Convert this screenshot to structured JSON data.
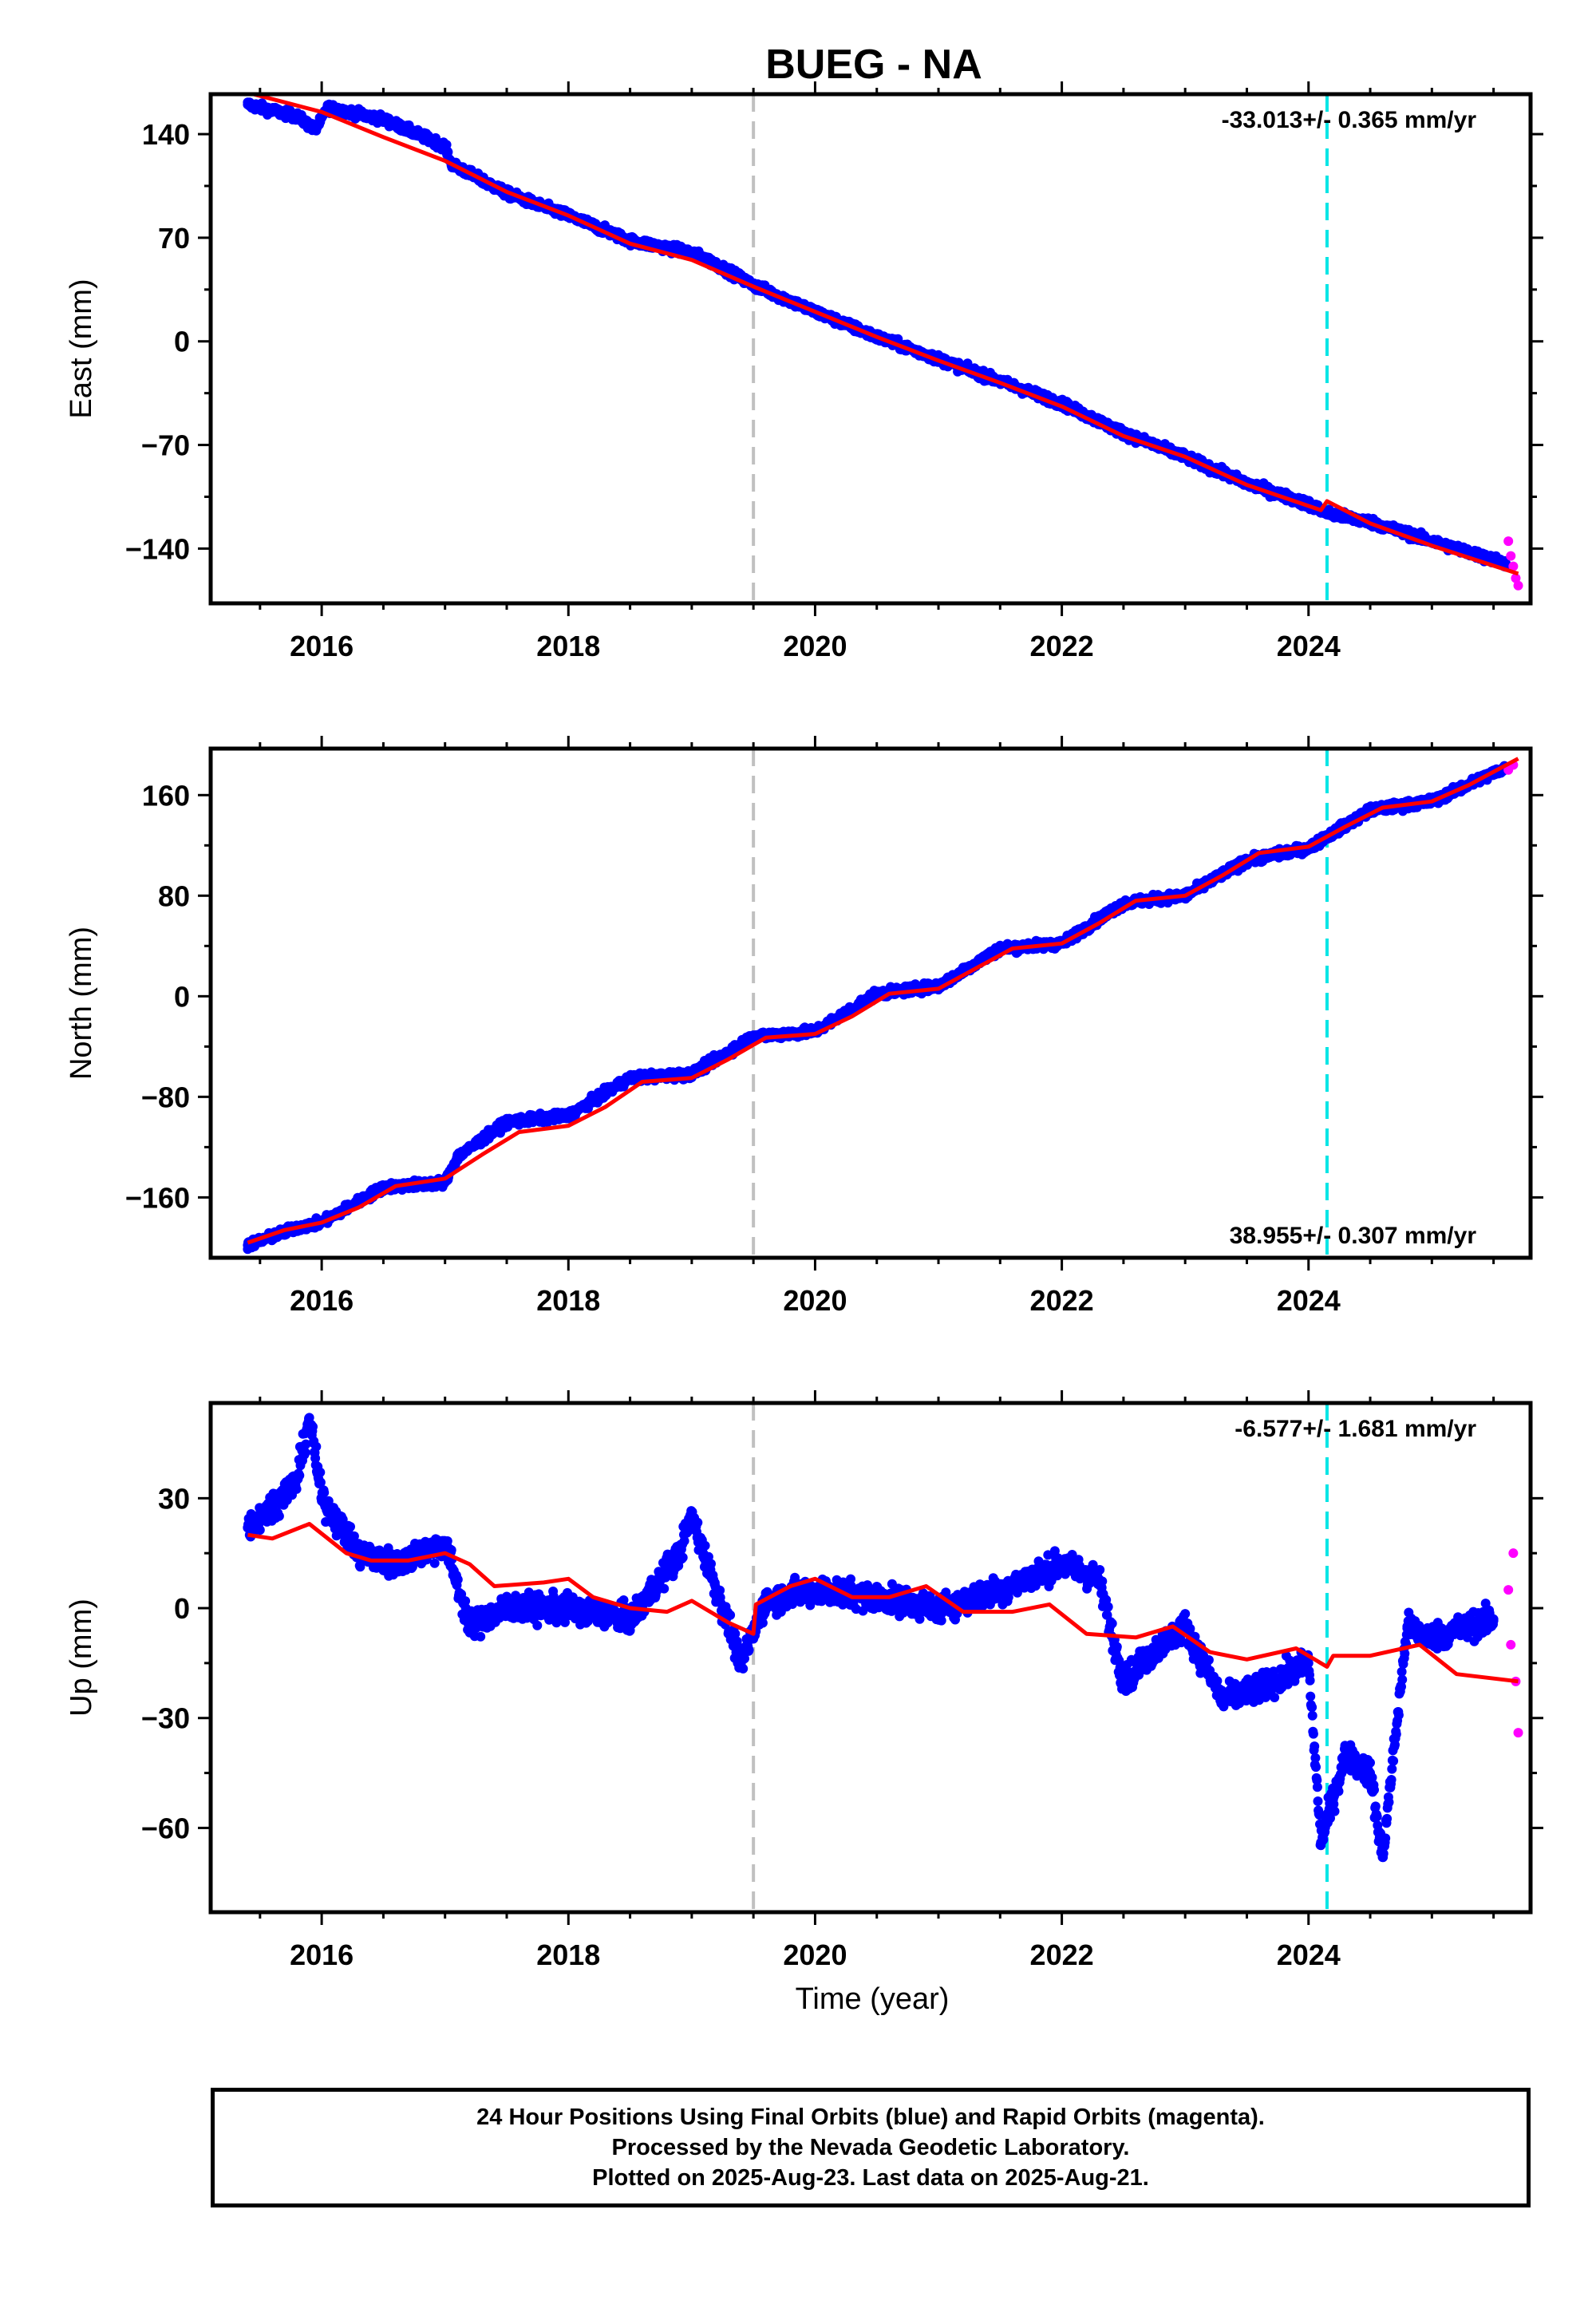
{
  "title": "BUEG - NA",
  "xlabel": "Time (year)",
  "footer": {
    "line1": "24 Hour Positions Using Final Orbits (blue) and Rapid Orbits (magenta).",
    "line2": "Processed by the Nevada Geodetic Laboratory.",
    "line3": "Plotted on 2025-Aug-23. Last data on 2025-Aug-21."
  },
  "colors": {
    "final": "#0000ff",
    "rapid": "#ff00ff",
    "model": "#ff0000",
    "event_gray": "#c0c0c0",
    "event_cyan": "#00e5e5"
  },
  "events": [
    2019.5,
    2024.15
  ],
  "xlim": [
    2015.1,
    2025.8
  ],
  "xticks": [
    "2016",
    "2018",
    "2020",
    "2022",
    "2024"
  ],
  "chart_data": [
    {
      "type": "scatter",
      "component": "east",
      "ylabel": "East (mm)",
      "ylim": [
        -177,
        167
      ],
      "yticks": [
        "140",
        "70",
        "0",
        "−70",
        "−140"
      ],
      "ytick_values": [
        140,
        70,
        0,
        -70,
        -140
      ],
      "rate": "-33.013+/- 0.365 mm/yr",
      "final_points": [
        [
          2015.4,
          160
        ],
        [
          2015.8,
          152
        ],
        [
          2015.95,
          143
        ],
        [
          2016.05,
          158
        ],
        [
          2016.5,
          150
        ],
        [
          2017.0,
          132
        ],
        [
          2017.05,
          120
        ],
        [
          2017.5,
          100
        ],
        [
          2018.0,
          85
        ],
        [
          2018.5,
          68
        ],
        [
          2019.0,
          60
        ],
        [
          2019.2,
          52
        ],
        [
          2019.5,
          38
        ],
        [
          2020.0,
          20
        ],
        [
          2020.5,
          3
        ],
        [
          2021.0,
          -12
        ],
        [
          2021.5,
          -27
        ],
        [
          2022.0,
          -42
        ],
        [
          2022.5,
          -62
        ],
        [
          2023.0,
          -78
        ],
        [
          2023.5,
          -96
        ],
        [
          2024.0,
          -110
        ],
        [
          2024.15,
          -116
        ],
        [
          2024.5,
          -122
        ],
        [
          2025.0,
          -135
        ],
        [
          2025.6,
          -150
        ]
      ],
      "rapid_points": [
        [
          2025.62,
          -135
        ],
        [
          2025.64,
          -145
        ],
        [
          2025.66,
          -152
        ],
        [
          2025.68,
          -160
        ],
        [
          2025.7,
          -165
        ]
      ],
      "model": [
        [
          2015.4,
          168
        ],
        [
          2016.0,
          155
        ],
        [
          2016.5,
          138
        ],
        [
          2017.0,
          122
        ],
        [
          2017.5,
          101
        ],
        [
          2018.0,
          85
        ],
        [
          2018.5,
          66
        ],
        [
          2019.0,
          55
        ],
        [
          2019.5,
          37
        ],
        [
          2020.0,
          20
        ],
        [
          2020.5,
          3
        ],
        [
          2021.0,
          -13
        ],
        [
          2021.5,
          -28
        ],
        [
          2022.0,
          -44
        ],
        [
          2022.5,
          -64
        ],
        [
          2023.0,
          -78
        ],
        [
          2023.5,
          -97
        ],
        [
          2024.1,
          -114
        ],
        [
          2024.15,
          -108
        ],
        [
          2024.5,
          -123
        ],
        [
          2025.0,
          -138
        ],
        [
          2025.7,
          -157
        ]
      ]
    },
    {
      "type": "scatter",
      "component": "north",
      "ylabel": "North (mm)",
      "ylim": [
        -208,
        197
      ],
      "yticks": [
        "160",
        "80",
        "0",
        "−80",
        "−160"
      ],
      "ytick_values": [
        160,
        80,
        0,
        -80,
        -160
      ],
      "rate": "38.955+/- 0.307 mm/yr",
      "final_points": [
        [
          2015.4,
          -198
        ],
        [
          2015.8,
          -184
        ],
        [
          2016.0,
          -180
        ],
        [
          2016.5,
          -152
        ],
        [
          2017.0,
          -148
        ],
        [
          2017.1,
          -128
        ],
        [
          2017.5,
          -100
        ],
        [
          2018.0,
          -95
        ],
        [
          2018.5,
          -65
        ],
        [
          2019.0,
          -62
        ],
        [
          2019.5,
          -32
        ],
        [
          2020.0,
          -28
        ],
        [
          2020.5,
          2
        ],
        [
          2021.0,
          8
        ],
        [
          2021.5,
          38
        ],
        [
          2022.0,
          42
        ],
        [
          2022.5,
          74
        ],
        [
          2023.0,
          80
        ],
        [
          2023.5,
          108
        ],
        [
          2024.0,
          118
        ],
        [
          2024.5,
          148
        ],
        [
          2025.0,
          155
        ],
        [
          2025.6,
          182
        ]
      ],
      "rapid_points": [
        [
          2025.62,
          180
        ],
        [
          2025.66,
          184
        ]
      ],
      "model": [
        [
          2015.4,
          -196
        ],
        [
          2015.7,
          -186
        ],
        [
          2016.0,
          -180
        ],
        [
          2016.3,
          -168
        ],
        [
          2016.6,
          -151
        ],
        [
          2017.0,
          -145
        ],
        [
          2017.3,
          -126
        ],
        [
          2017.6,
          -108
        ],
        [
          2018.0,
          -103
        ],
        [
          2018.3,
          -88
        ],
        [
          2018.6,
          -68
        ],
        [
          2019.0,
          -65
        ],
        [
          2019.3,
          -50
        ],
        [
          2019.6,
          -33
        ],
        [
          2020.0,
          -30
        ],
        [
          2020.3,
          -16
        ],
        [
          2020.6,
          2
        ],
        [
          2021.0,
          6
        ],
        [
          2021.3,
          22
        ],
        [
          2021.6,
          38
        ],
        [
          2022.0,
          42
        ],
        [
          2022.3,
          58
        ],
        [
          2022.6,
          76
        ],
        [
          2023.0,
          80
        ],
        [
          2023.3,
          96
        ],
        [
          2023.6,
          114
        ],
        [
          2024.0,
          119
        ],
        [
          2024.3,
          135
        ],
        [
          2024.6,
          150
        ],
        [
          2025.0,
          155
        ],
        [
          2025.3,
          168
        ],
        [
          2025.7,
          189
        ]
      ]
    },
    {
      "type": "scatter",
      "component": "up",
      "ylabel": "Up (mm)",
      "ylim": [
        -83,
        56
      ],
      "yticks": [
        "30",
        "0",
        "−30",
        "−60"
      ],
      "ytick_values": [
        30,
        0,
        -30,
        -60
      ],
      "rate": "-6.577+/- 1.681 mm/yr",
      "final_points": [
        [
          2015.4,
          22
        ],
        [
          2015.6,
          28
        ],
        [
          2015.8,
          35
        ],
        [
          2015.9,
          52
        ],
        [
          2016.0,
          30
        ],
        [
          2016.3,
          15
        ],
        [
          2016.6,
          12
        ],
        [
          2017.0,
          18
        ],
        [
          2017.2,
          -5
        ],
        [
          2017.5,
          0
        ],
        [
          2018.0,
          0
        ],
        [
          2018.5,
          -3
        ],
        [
          2018.9,
          15
        ],
        [
          2019.0,
          25
        ],
        [
          2019.4,
          -15
        ],
        [
          2019.6,
          2
        ],
        [
          2020.0,
          5
        ],
        [
          2020.5,
          3
        ],
        [
          2021.0,
          0
        ],
        [
          2021.5,
          5
        ],
        [
          2022.0,
          12
        ],
        [
          2022.3,
          8
        ],
        [
          2022.5,
          -20
        ],
        [
          2022.8,
          -10
        ],
        [
          2023.0,
          -5
        ],
        [
          2023.3,
          -25
        ],
        [
          2023.6,
          -22
        ],
        [
          2024.0,
          -15
        ],
        [
          2024.1,
          -64
        ],
        [
          2024.3,
          -40
        ],
        [
          2024.5,
          -45
        ],
        [
          2024.6,
          -68
        ],
        [
          2024.8,
          -5
        ],
        [
          2025.0,
          -8
        ],
        [
          2025.5,
          -3
        ]
      ],
      "rapid_points": [
        [
          2025.62,
          5
        ],
        [
          2025.64,
          -10
        ],
        [
          2025.66,
          15
        ],
        [
          2025.68,
          -20
        ],
        [
          2025.7,
          -34
        ]
      ],
      "model": [
        [
          2015.4,
          20
        ],
        [
          2015.6,
          19
        ],
        [
          2015.9,
          23
        ],
        [
          2016.2,
          15
        ],
        [
          2016.4,
          13
        ],
        [
          2016.7,
          13
        ],
        [
          2017.0,
          15
        ],
        [
          2017.2,
          12
        ],
        [
          2017.4,
          6
        ],
        [
          2017.8,
          7
        ],
        [
          2018.0,
          8
        ],
        [
          2018.2,
          3
        ],
        [
          2018.5,
          0
        ],
        [
          2018.8,
          -1
        ],
        [
          2019.0,
          2
        ],
        [
          2019.3,
          -4
        ],
        [
          2019.5,
          -7
        ],
        [
          2019.52,
          1
        ],
        [
          2019.8,
          6
        ],
        [
          2020.0,
          8
        ],
        [
          2020.3,
          3
        ],
        [
          2020.6,
          3
        ],
        [
          2020.9,
          6
        ],
        [
          2021.2,
          -1
        ],
        [
          2021.6,
          -1
        ],
        [
          2021.9,
          1
        ],
        [
          2022.2,
          -7
        ],
        [
          2022.6,
          -8
        ],
        [
          2022.9,
          -5
        ],
        [
          2023.2,
          -12
        ],
        [
          2023.5,
          -14
        ],
        [
          2023.9,
          -11
        ],
        [
          2024.15,
          -16
        ],
        [
          2024.2,
          -13
        ],
        [
          2024.5,
          -13
        ],
        [
          2024.9,
          -10
        ],
        [
          2025.2,
          -18
        ],
        [
          2025.7,
          -20
        ]
      ]
    }
  ]
}
